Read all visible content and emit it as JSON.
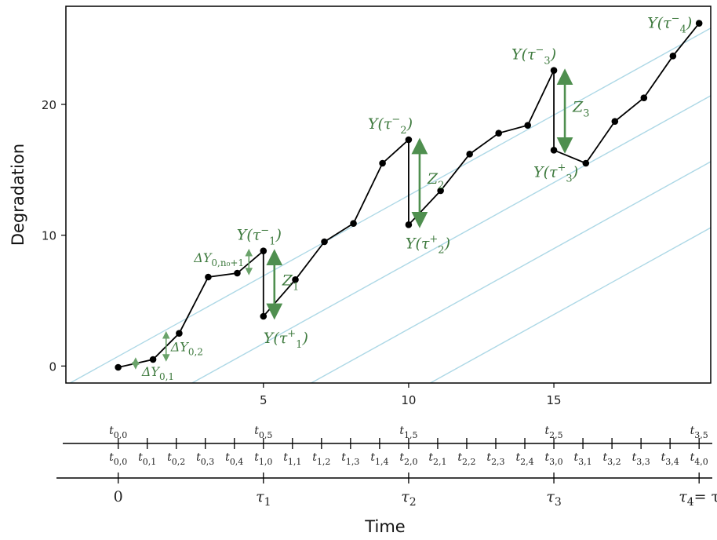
{
  "chart_data": {
    "type": "line",
    "xlabel": "Time",
    "ylabel": "Degradation",
    "xlim": [
      -1.8,
      20.4
    ],
    "ylim": [
      -1.3,
      27.5
    ],
    "x_ticks": [
      "5",
      "10",
      "15"
    ],
    "x_tick_values": [
      5,
      10,
      15
    ],
    "y_ticks": [
      "0",
      "10",
      "20"
    ],
    "y_tick_values": [
      0,
      10,
      20
    ],
    "grid": false,
    "series": [
      {
        "name": "",
        "color": "#000000",
        "x": [
          0,
          1.2,
          2.1,
          3.1,
          4.1,
          5.0,
          5.0,
          6.1,
          7.1,
          8.1,
          9.1,
          10.0,
          10.0,
          11.1,
          12.1,
          13.1,
          14.1,
          15.0,
          15.0,
          16.1,
          17.1,
          18.1,
          19.1,
          20.0
        ],
        "y": [
          -0.1,
          0.5,
          2.5,
          6.8,
          7.1,
          8.8,
          3.8,
          6.6,
          9.5,
          10.9,
          15.5,
          17.3,
          10.8,
          13.4,
          16.2,
          17.8,
          18.4,
          22.6,
          16.5,
          15.5,
          18.7,
          20.5,
          23.7,
          26.2
        ]
      }
    ],
    "reference_lines": {
      "color": "#add8e6",
      "slope": 1.23,
      "x_intercepts": [
        -0.6,
        3.6,
        7.7,
        11.8
      ]
    },
    "jumps": [
      {
        "label": "Z",
        "sub": "1",
        "x": 5.0,
        "y_from": 3.8,
        "y_to": 8.8
      },
      {
        "label": "Z",
        "sub": "2",
        "x": 10.0,
        "y_from": 10.8,
        "y_to": 17.3
      },
      {
        "label": "Z",
        "sub": "3",
        "x": 15.0,
        "y_from": 16.5,
        "y_to": 22.6
      }
    ],
    "increments": [
      {
        "label": "ΔY",
        "sub": "0,1",
        "x": 0.6,
        "y_from": -0.1,
        "y_to": 0.5
      },
      {
        "label": "ΔY",
        "sub": "0,2",
        "x": 1.65,
        "y_from": 0.5,
        "y_to": 2.5
      },
      {
        "label": "ΔY",
        "sub": "0,n₀+1",
        "x": 4.5,
        "y_from": 7.1,
        "y_to": 8.8
      }
    ],
    "point_labels": {
      "tau1_minus": {
        "text": "Y(τ",
        "sup": "−",
        "sub": "1",
        "close": ")"
      },
      "tau1_plus": {
        "text": "Y(τ",
        "sup": "+",
        "sub": "1",
        "close": ")"
      },
      "tau2_minus": {
        "text": "Y(τ",
        "sup": "−",
        "sub": "2",
        "close": ")"
      },
      "tau2_plus": {
        "text": "Y(τ",
        "sup": "+",
        "sub": "2",
        "close": ")"
      },
      "tau3_minus": {
        "text": "Y(τ",
        "sup": "−",
        "sub": "3",
        "close": ")"
      },
      "tau3_plus": {
        "text": "Y(τ",
        "sup": "+",
        "sub": "3",
        "close": ")"
      },
      "tau4_minus": {
        "text": "Y(τ",
        "sup": "−",
        "sub": "4",
        "close": ")"
      }
    },
    "timeline_top": [
      {
        "x": 0,
        "label": "t",
        "sub": "0,0"
      },
      {
        "x": 5,
        "label": "t",
        "sub": "0,5"
      },
      {
        "x": 10,
        "label": "t",
        "sub": "1,5"
      },
      {
        "x": 15,
        "label": "t",
        "sub": "2,5"
      },
      {
        "x": 20,
        "label": "t",
        "sub": "3,5"
      }
    ],
    "timeline_mid": [
      {
        "x": 0,
        "label": "t",
        "sub": "0,0"
      },
      {
        "x": 1,
        "label": "t",
        "sub": "0,1"
      },
      {
        "x": 2,
        "label": "t",
        "sub": "0,2"
      },
      {
        "x": 3,
        "label": "t",
        "sub": "0,3"
      },
      {
        "x": 4,
        "label": "t",
        "sub": "0,4"
      },
      {
        "x": 5,
        "label": "t",
        "sub": "1,0"
      },
      {
        "x": 6,
        "label": "t",
        "sub": "1,1"
      },
      {
        "x": 7,
        "label": "t",
        "sub": "1,2"
      },
      {
        "x": 8,
        "label": "t",
        "sub": "1,3"
      },
      {
        "x": 9,
        "label": "t",
        "sub": "1,4"
      },
      {
        "x": 10,
        "label": "t",
        "sub": "2,0"
      },
      {
        "x": 11,
        "label": "t",
        "sub": "2,1"
      },
      {
        "x": 12,
        "label": "t",
        "sub": "2,2"
      },
      {
        "x": 13,
        "label": "t",
        "sub": "2,3"
      },
      {
        "x": 14,
        "label": "t",
        "sub": "2,4"
      },
      {
        "x": 15,
        "label": "t",
        "sub": "3,0"
      },
      {
        "x": 16,
        "label": "t",
        "sub": "3,1"
      },
      {
        "x": 17,
        "label": "t",
        "sub": "3,2"
      },
      {
        "x": 18,
        "label": "t",
        "sub": "3,3"
      },
      {
        "x": 19,
        "label": "t",
        "sub": "3,4"
      },
      {
        "x": 20,
        "label": "t",
        "sub": "4,0"
      }
    ],
    "timeline_bottom": [
      {
        "x": 0,
        "label": "0",
        "sub": ""
      },
      {
        "x": 5,
        "label": "τ",
        "sub": "1"
      },
      {
        "x": 10,
        "label": "τ",
        "sub": "2"
      },
      {
        "x": 15,
        "label": "τ",
        "sub": "3"
      },
      {
        "x": 20,
        "label": "τ",
        "sub": "4",
        "suffix": "= τ"
      }
    ]
  }
}
